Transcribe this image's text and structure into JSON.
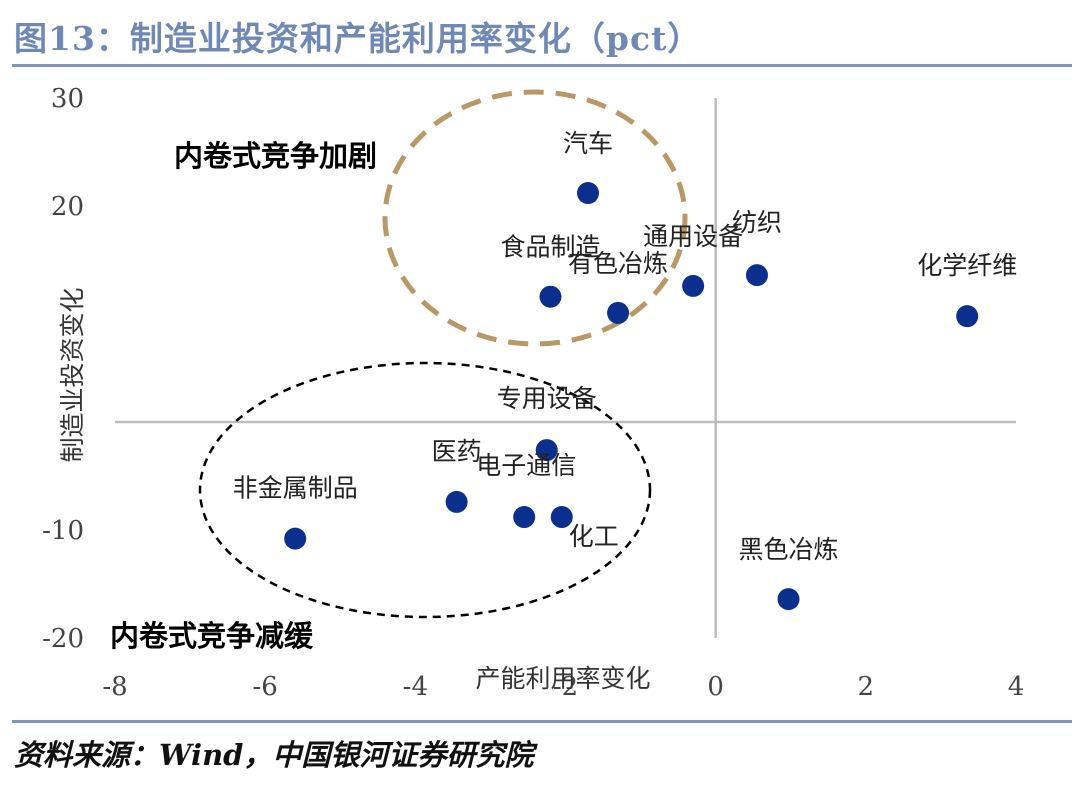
{
  "figure": {
    "title": "图13：制造业投资和产能利用率变化（pct）",
    "source": "资料来源：Wind，中国银河证券研究院"
  },
  "chart_data": {
    "type": "scatter",
    "xlabel": "产能利用率变化",
    "ylabel": "制造业投资变化",
    "xlim": [
      -8,
      4
    ],
    "ylim": [
      -20,
      30
    ],
    "x_ticks": [
      -8,
      -6,
      -4,
      -2,
      0,
      2,
      4
    ],
    "y_ticks": [
      30,
      20,
      -10,
      -20
    ],
    "x_tick_labels": [
      "-8",
      "-6",
      "-4",
      "-2",
      "0",
      "2",
      "4"
    ],
    "y_tick_labels": [
      "30",
      "20",
      "-10",
      "-20"
    ],
    "marker_color": "#0b2f8c",
    "points": [
      {
        "label": "汽车",
        "x": -1.7,
        "y": 21.2
      },
      {
        "label": "食品制造",
        "x": -2.2,
        "y": 11.6
      },
      {
        "label": "有色冶炼",
        "x": -1.3,
        "y": 10.1
      },
      {
        "label": "通用设备",
        "x": -0.3,
        "y": 12.6
      },
      {
        "label": "纺织",
        "x": 0.55,
        "y": 13.6
      },
      {
        "label": "化学纤维",
        "x": 3.35,
        "y": 9.8
      },
      {
        "label": "专用设备",
        "x": -2.25,
        "y": -2.6
      },
      {
        "label": "医药",
        "x": -3.45,
        "y": -7.4
      },
      {
        "label": "电子通信",
        "x": -2.55,
        "y": -8.8
      },
      {
        "label": "化工",
        "x": -2.05,
        "y": -8.8
      },
      {
        "label": "非金属制品",
        "x": -5.6,
        "y": -10.8
      },
      {
        "label": "黑色冶炼",
        "x": 0.97,
        "y": -16.4
      }
    ],
    "annotations": [
      {
        "text": "内卷式竞争加剧",
        "color": "#b79866",
        "style": "dashed"
      },
      {
        "text": "内卷式竞争减缓",
        "color": "#000000",
        "style": "dashed"
      }
    ]
  }
}
